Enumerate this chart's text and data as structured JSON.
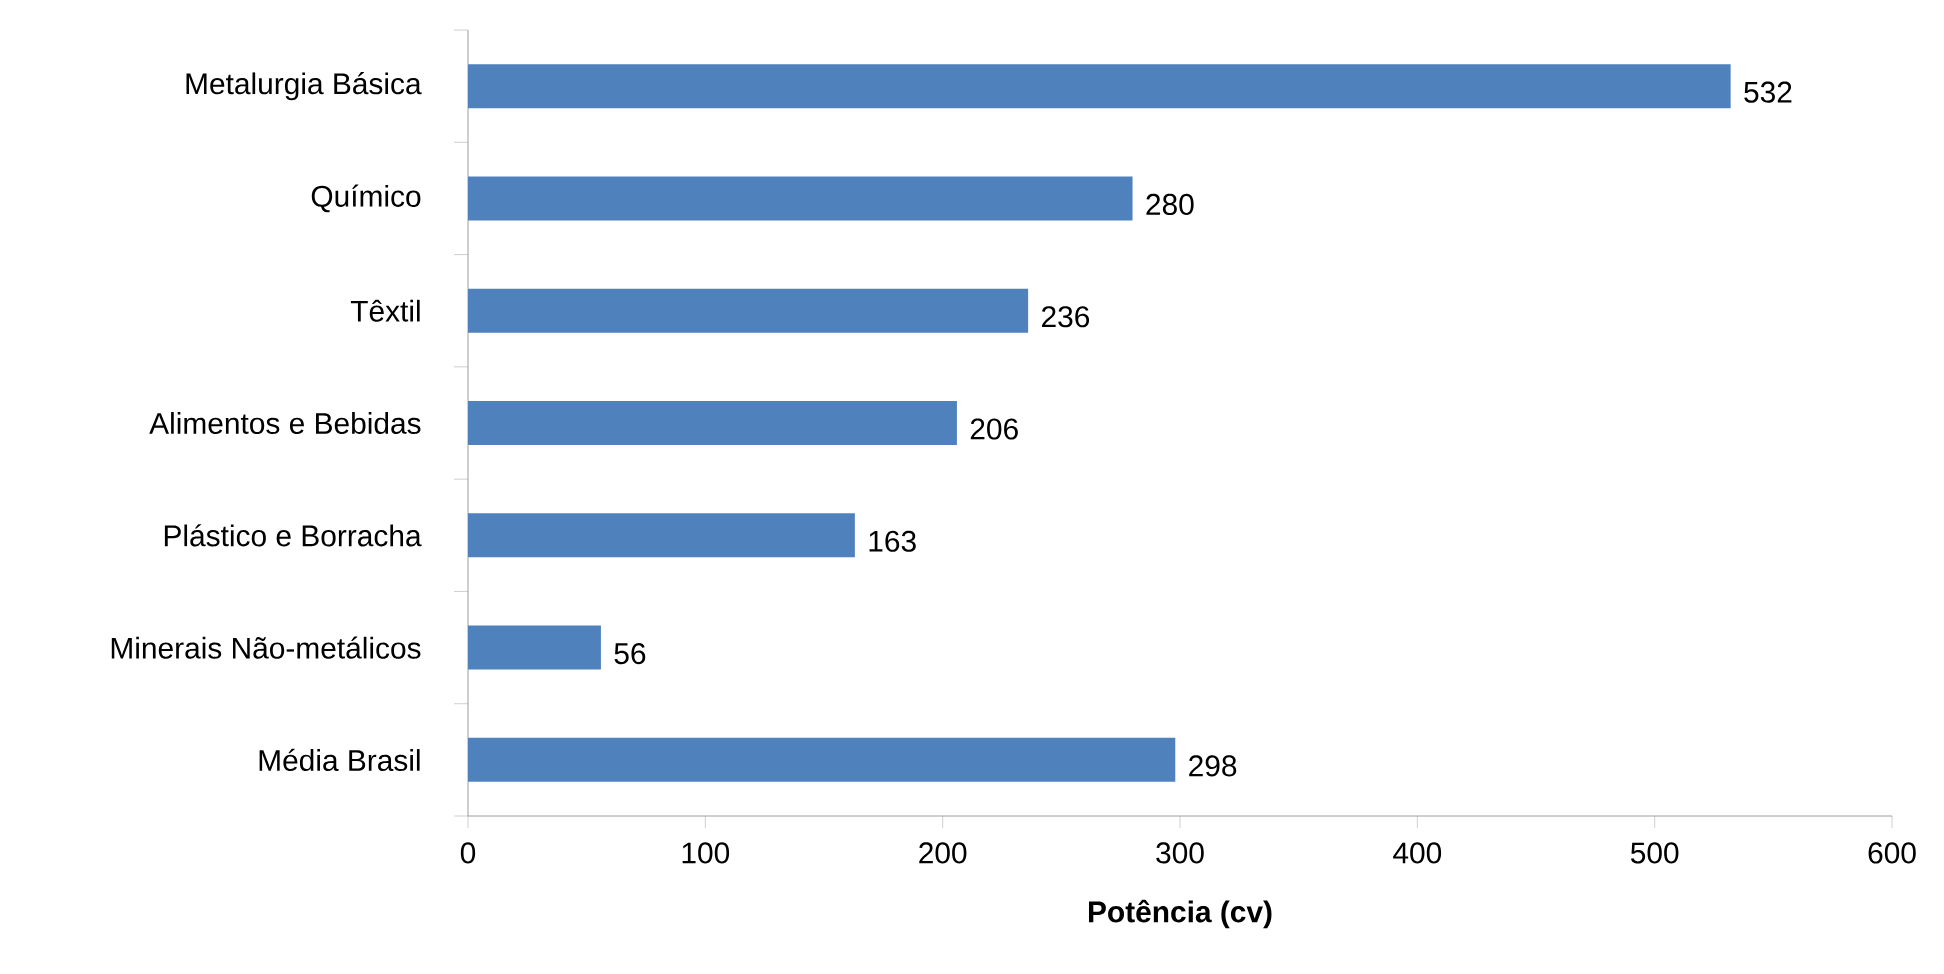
{
  "chart_data": {
    "type": "bar",
    "orientation": "horizontal",
    "categories": [
      "Metalurgia Básica",
      "Químico",
      "Têxtil",
      "Alimentos e Bebidas",
      "Plástico e Borracha",
      "Minerais Não-metálicos",
      "Média Brasil"
    ],
    "values": [
      532,
      280,
      236,
      206,
      163,
      56,
      298
    ],
    "color": "#4f81bd",
    "data_labels": true,
    "xlim": [
      0,
      600
    ],
    "xticks": [
      0,
      100,
      200,
      300,
      400,
      500,
      600
    ],
    "xlabel": "Potência (cv)",
    "grid": false
  }
}
